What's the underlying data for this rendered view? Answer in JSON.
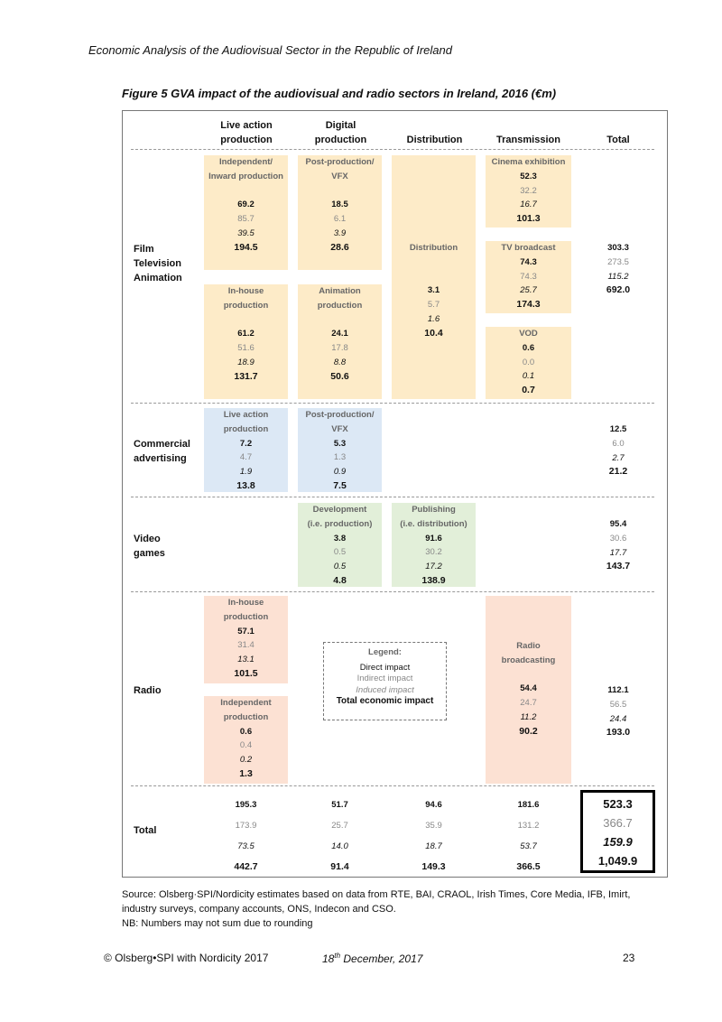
{
  "header": {
    "title": "Economic Analysis of the Audiovisual Sector in the Republic of Ireland"
  },
  "figure": {
    "title": "Figure 5 GVA impact of the audiovisual and radio sectors in Ireland, 2016 (€m)",
    "columns": {
      "live_action": [
        "Live action",
        "production"
      ],
      "digital": [
        "Digital",
        "production"
      ],
      "distribution": "Distribution",
      "transmission": "Transmission",
      "total": "Total"
    },
    "rows": {
      "film": [
        "Film",
        "Television",
        "Animation"
      ],
      "advertising": [
        "Commercial",
        "advertising"
      ],
      "games": [
        "Video",
        "games"
      ],
      "radio": "Radio",
      "total": "Total"
    },
    "film": {
      "independent": {
        "caption": [
          "Independent/",
          "Inward production"
        ],
        "values": [
          "69.2",
          "85.7",
          "39.5",
          "194.5"
        ]
      },
      "postprod": {
        "caption": [
          "Post-production/",
          "VFX"
        ],
        "values": [
          "18.5",
          "6.1",
          "3.9",
          "28.6"
        ]
      },
      "inhouse": {
        "caption": [
          "In-house",
          "production"
        ],
        "values": [
          "61.2",
          "51.6",
          "18.9",
          "131.7"
        ]
      },
      "animation": {
        "caption": [
          "Animation",
          "production"
        ],
        "values": [
          "24.1",
          "17.8",
          "8.8",
          "50.6"
        ]
      },
      "distribution": {
        "caption": "Distribution",
        "values": [
          "3.1",
          "5.7",
          "1.6",
          "10.4"
        ]
      },
      "cinema": {
        "caption": "Cinema exhibition",
        "values": [
          "52.3",
          "32.2",
          "16.7",
          "101.3"
        ]
      },
      "tv": {
        "caption": "TV broadcast",
        "values": [
          "74.3",
          "74.3",
          "25.7",
          "174.3"
        ]
      },
      "vod": {
        "caption": "VOD",
        "values": [
          "0.6",
          "0.0",
          "0.1",
          "0.7"
        ]
      },
      "total": {
        "values": [
          "303.3",
          "273.5",
          "115.2",
          "692.0"
        ]
      }
    },
    "advertising": {
      "live": {
        "caption": [
          "Live action",
          "production"
        ],
        "values": [
          "7.2",
          "4.7",
          "1.9",
          "13.8"
        ]
      },
      "postprod": {
        "caption": [
          "Post-production/",
          "VFX"
        ],
        "values": [
          "5.3",
          "1.3",
          "0.9",
          "7.5"
        ]
      },
      "total": {
        "values": [
          "12.5",
          "6.0",
          "2.7",
          "21.2"
        ]
      }
    },
    "games": {
      "development": {
        "caption": [
          "Development",
          "(i.e. production)"
        ],
        "values": [
          "3.8",
          "0.5",
          "0.5",
          "4.8"
        ]
      },
      "publishing": {
        "caption": [
          "Publishing",
          "(i.e. distribution)"
        ],
        "values": [
          "91.6",
          "30.2",
          "17.2",
          "138.9"
        ]
      },
      "total": {
        "values": [
          "95.4",
          "30.6",
          "17.7",
          "143.7"
        ]
      }
    },
    "radio": {
      "inhouse": {
        "caption": [
          "In-house",
          "production"
        ],
        "values": [
          "57.1",
          "31.4",
          "13.1",
          "101.5"
        ]
      },
      "independent": {
        "caption": [
          "Independent",
          "production"
        ],
        "values": [
          "0.6",
          "0.4",
          "0.2",
          "1.3"
        ]
      },
      "broadcasting": {
        "caption": [
          "Radio",
          "broadcasting"
        ],
        "values": [
          "54.4",
          "24.7",
          "11.2",
          "90.2"
        ]
      },
      "total": {
        "values": [
          "112.1",
          "56.5",
          "24.4",
          "193.0"
        ]
      }
    },
    "legend": {
      "title": "Legend:",
      "direct": "Direct impact",
      "indirect": "Indirect impact",
      "induced": "Induced impact",
      "total": "Total economic impact"
    },
    "totals": {
      "live_action": [
        "195.3",
        "173.9",
        "73.5",
        "442.7"
      ],
      "digital": [
        "51.7",
        "25.7",
        "14.0",
        "91.4"
      ],
      "distribution": [
        "94.6",
        "35.9",
        "18.7",
        "149.3"
      ],
      "transmission": [
        "181.6",
        "131.2",
        "53.7",
        "366.5"
      ],
      "grand": [
        "523.3",
        "366.7",
        "159.9",
        "1,049.9"
      ]
    },
    "colors": {
      "yellow": "#fdebc8",
      "blue": "#dce8f5",
      "green": "#e2efd9",
      "pink": "#fce1d3"
    }
  },
  "source": [
    "Source: Olsberg·SPI/Nordicity estimates based on data from RTE, BAI, CRAOL, Irish Times, Core Media, IFB, Imirt,",
    "industry surveys, company accounts, ONS, Indecon and CSO.",
    "NB: Numbers may not sum due to rounding"
  ],
  "footer": {
    "copyright": "© Olsberg•SPI with Nordicity 2017",
    "date_day": "18",
    "date_suffix": "th",
    "date_rest": " December, 2017",
    "page": "23"
  }
}
